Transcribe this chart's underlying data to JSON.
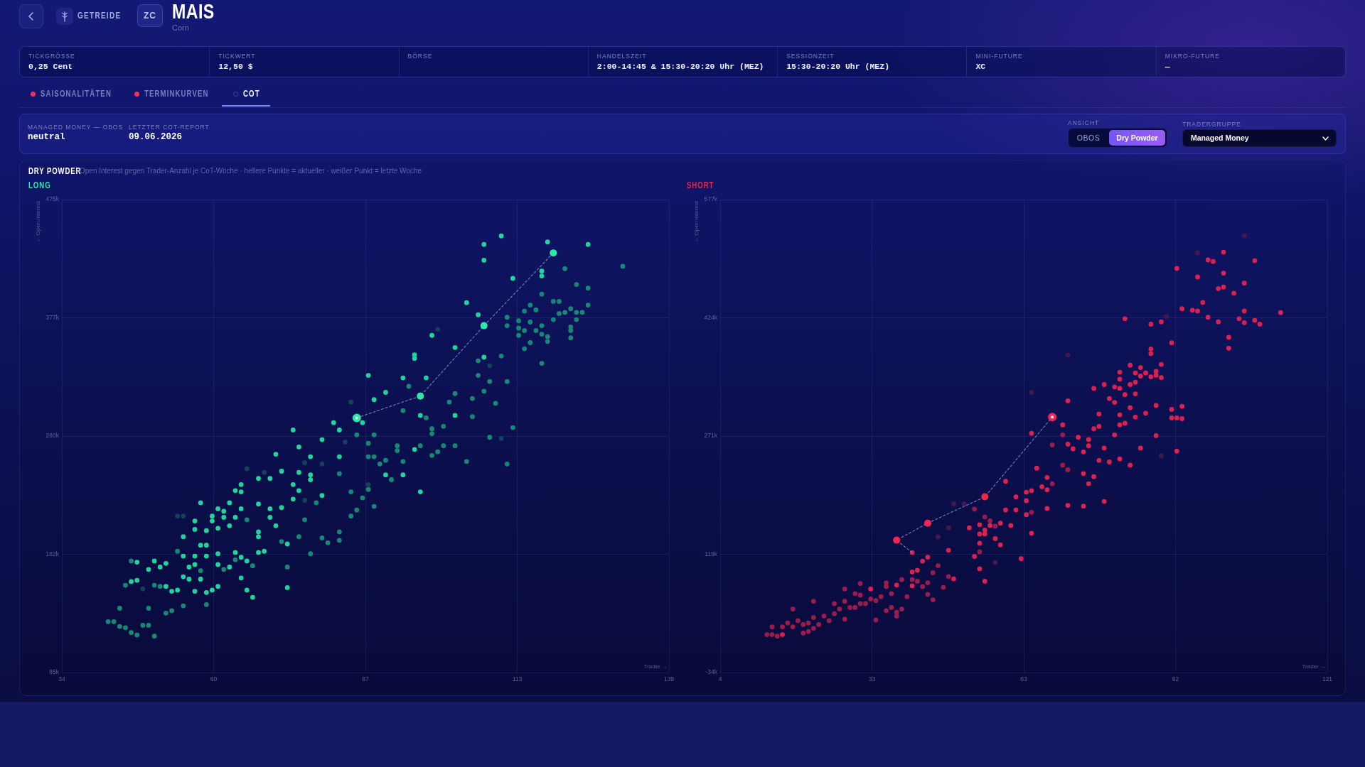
{
  "chart_data": [
    {
      "type": "other",
      "title": "MAIS",
      "subtitle": "Corn",
      "annotations": [
        "GETREIDE",
        "ZC"
      ]
    },
    {
      "type": "other",
      "annotations": [
        "TICKGRÖSSE",
        "0,25 Cent",
        "TICKWERT",
        "12,50 $",
        "BÖRSE",
        "HANDELSZEIT",
        "2:00-14:45 & 15:30-20:20 Uhr (MEZ)",
        "SESSIONZEIT",
        "15:30-20:20 Uhr (MEZ)",
        "MINI-FUTURE",
        "XC",
        "MIKRO-FUTURE",
        "—"
      ]
    },
    {
      "type": "other",
      "annotations": [
        "SAISONALITÄTEN",
        "TERMINKURVEN",
        "COT"
      ]
    },
    {
      "type": "other",
      "annotations": [
        "MANAGED MONEY — OBOS",
        "neutral",
        "LETZTER COT-REPORT",
        "09.06.2026",
        "ANSICHT",
        "OBOS",
        "Dry Powder",
        "TRADERGRUPPE",
        "Managed Money"
      ]
    },
    {
      "type": "other",
      "title": "DRY POWDER",
      "subtitle": "Open Interest gegen Trader-Anzahl je CoT-Woche · hellere Punkte = aktueller · weißer Punkt = letzte Woche"
    },
    {
      "type": "scatter",
      "title": "LONG",
      "xlabel": "Trader →",
      "ylabel": "← Open Interest",
      "xlim": [
        34,
        139
      ],
      "xticks": [
        34,
        {
          "value": 60.25,
          "label": "60"
        },
        {
          "value": 86.5,
          "label": "87"
        },
        {
          "value": 112.75,
          "label": "113"
        },
        139
      ],
      "ylim": [
        85000,
        475000
      ],
      "yticks": [
        {
          "value": 85000,
          "label": "85k"
        },
        {
          "value": 182500,
          "label": "182k"
        },
        {
          "value": 280000,
          "label": "280k"
        },
        {
          "value": 377500,
          "label": "377k"
        },
        {
          "value": 475000,
          "label": "475k"
        }
      ],
      "grid": true,
      "marker": "circle",
      "series": [
        {
          "color": "#14405a",
          "x": [
            54,
            55,
            66,
            69,
            76,
            79,
            83,
            84,
            76,
            48,
            87,
            99,
            108,
            110
          ],
          "values": [
            214000,
            214000,
            253000,
            250000,
            258000,
            257000,
            275000,
            308000,
            227000,
            154000,
            240000,
            368000,
            338000,
            278000
          ]
        },
        {
          "color": "#168874",
          "x": [
            42,
            43,
            44,
            45,
            46,
            47,
            48,
            49,
            50,
            44,
            49,
            52,
            53,
            55,
            59,
            45,
            46,
            50,
            51,
            54,
            58,
            62,
            64,
            67,
            73,
            66,
            79,
            82,
            82,
            84,
            84,
            72,
            75,
            76,
            77,
            78,
            80,
            82,
            105,
            88,
            87,
            87,
            88,
            89,
            90,
            91,
            92,
            92,
            93,
            94,
            93,
            96,
            97,
            98,
            98,
            98,
            99,
            100,
            100,
            102,
            101,
            102,
            104,
            105,
            106,
            106,
            107,
            108,
            109,
            111,
            110,
            112,
            108,
            111,
            111,
            111,
            113,
            113,
            113,
            114,
            114,
            114,
            115,
            115,
            115,
            116,
            116,
            117,
            117,
            117,
            118,
            118,
            119,
            119,
            120,
            120,
            121,
            121,
            122,
            122,
            122,
            122,
            123,
            123,
            123,
            124,
            125,
            125,
            131,
            117,
            85,
            86,
            87,
            88,
            85
          ],
          "values": [
            127000,
            127000,
            123000,
            122000,
            118000,
            116000,
            124000,
            124000,
            115000,
            138000,
            138000,
            134000,
            136000,
            140000,
            141000,
            157000,
            177000,
            157000,
            156000,
            185000,
            169000,
            170000,
            178000,
            173000,
            172000,
            211000,
            196000,
            249000,
            201000,
            234000,
            214000,
            193000,
            197000,
            211000,
            183000,
            225000,
            192000,
            194000,
            296000,
            281000,
            274000,
            263000,
            263000,
            257000,
            260000,
            244000,
            272000,
            268000,
            259000,
            321000,
            301000,
            272000,
            295000,
            286000,
            282000,
            264000,
            267000,
            288000,
            272000,
            272000,
            308000,
            315000,
            259000,
            311000,
            330000,
            342000,
            317000,
            325000,
            307000,
            325000,
            346000,
            287000,
            279000,
            257000,
            378000,
            371000,
            375000,
            369000,
            363000,
            383000,
            367000,
            352000,
            388000,
            374000,
            357000,
            384000,
            367000,
            397000,
            371000,
            364000,
            362000,
            358000,
            391000,
            376000,
            391000,
            381000,
            418000,
            382000,
            385000,
            370000,
            367000,
            361000,
            405000,
            382000,
            376000,
            382000,
            402000,
            388000,
            420000,
            340000,
            281000,
            229000,
            236000,
            222000,
            219000
          ]
        },
        {
          "color": "#20d49c",
          "x": [
            46,
            47,
            47,
            49,
            50,
            51,
            52,
            52,
            53,
            54,
            55,
            55,
            56,
            56,
            57,
            57,
            57,
            58,
            58,
            59,
            59,
            59,
            60,
            61,
            61,
            61,
            63,
            64,
            65,
            65,
            66,
            66,
            67,
            68,
            69,
            73,
            55,
            57,
            57,
            58,
            59,
            60,
            60,
            61,
            61,
            62,
            62,
            63,
            63,
            64,
            64,
            65,
            65,
            65,
            68,
            68,
            68,
            68,
            70,
            70,
            70,
            71,
            71,
            72,
            72,
            74,
            74,
            74,
            75,
            75,
            75,
            77,
            77,
            77,
            79,
            79,
            81,
            82,
            82,
            73,
            87,
            88,
            90,
            93,
            95,
            95,
            97,
            98,
            102,
            104,
            106,
            107,
            107,
            110,
            112,
            117,
            117,
            118,
            125,
            107,
            96,
            102,
            86,
            90,
            93,
            95,
            96
          ],
          "values": [
            160000,
            161000,
            176000,
            170000,
            177000,
            172000,
            175000,
            156000,
            152000,
            153000,
            181000,
            164000,
            172000,
            162000,
            181000,
            174000,
            152000,
            190000,
            162000,
            190000,
            181000,
            151000,
            153000,
            183000,
            174000,
            156000,
            172000,
            184000,
            180000,
            163000,
            177000,
            153000,
            147000,
            184000,
            185000,
            155000,
            197000,
            210000,
            203000,
            225000,
            202000,
            214000,
            210000,
            220000,
            204000,
            218000,
            213000,
            225000,
            206000,
            235000,
            213000,
            240000,
            234000,
            220000,
            245000,
            224000,
            201000,
            197000,
            245000,
            220000,
            213000,
            265000,
            206000,
            251000,
            221000,
            285000,
            240000,
            228000,
            271000,
            250000,
            235000,
            263000,
            248000,
            244000,
            277000,
            231000,
            291000,
            285000,
            263000,
            191000,
            330000,
            310000,
            316000,
            328000,
            347000,
            344000,
            328000,
            363000,
            353000,
            390000,
            380000,
            438000,
            425000,
            445000,
            410000,
            416000,
            412000,
            440000,
            438000,
            345000,
            297000,
            297000,
            291000,
            248000,
            248000,
            269000,
            234000
          ]
        },
        {
          "type": "line",
          "line_style": "dashed",
          "marker": "none",
          "color": "#7c80b4",
          "x": [
            119,
            107,
            96,
            85
          ],
          "values": [
            431000,
            371000,
            313000,
            295000
          ]
        },
        {
          "color": "#2aeaa8",
          "x": [
            119,
            107,
            96
          ],
          "values": [
            431000,
            371000,
            313000
          ]
        },
        {
          "color": "#ffffff",
          "x": [
            85
          ],
          "values": [
            295000
          ]
        }
      ]
    },
    {
      "type": "scatter",
      "title": "SHORT",
      "xlabel": "Trader →",
      "ylabel": "← Open Interest",
      "xlim": [
        4,
        121
      ],
      "xticks": [
        4,
        {
          "value": 33.25,
          "label": "33"
        },
        {
          "value": 62.5,
          "label": "63"
        },
        {
          "value": 91.75,
          "label": "92"
        },
        121
      ],
      "ylim": [
        -34000,
        577000
      ],
      "yticks": [
        {
          "value": -34000,
          "label": "-34k"
        },
        {
          "value": 118750,
          "label": "119k"
        },
        {
          "value": 271500,
          "label": "271k"
        },
        {
          "value": 424250,
          "label": "424k"
        },
        {
          "value": 577000,
          "label": "577k"
        }
      ],
      "grid": true,
      "marker": "circle",
      "series": [
        {
          "color": "#45174f",
          "x": [
            51,
            49,
            48,
            46,
            57,
            90,
            96,
            105,
            71,
            64,
            89
          ],
          "values": [
            184000,
            184000,
            153000,
            141000,
            108000,
            426000,
            508000,
            530000,
            376000,
            328000,
            246000
          ]
        },
        {
          "color": "#9a1c4c",
          "x": [
            13,
            14,
            14,
            15,
            16,
            17,
            18,
            19,
            18,
            20,
            20,
            21,
            21,
            22,
            22,
            22,
            23,
            24,
            25,
            26,
            26,
            27,
            28,
            28,
            28,
            29,
            30,
            30,
            31,
            31,
            31,
            32,
            33,
            34,
            34,
            35,
            36,
            36,
            36,
            37,
            37,
            38,
            38,
            39,
            39,
            40,
            41,
            42,
            43,
            44,
            44,
            45,
            45,
            46,
            47,
            48,
            54,
            55,
            56,
            57,
            53,
            68,
            68,
            70,
            70,
            71,
            64
          ],
          "values": [
            15000,
            15000,
            25000,
            13000,
            25000,
            30000,
            25000,
            33000,
            48000,
            28000,
            17000,
            30000,
            19000,
            37000,
            23000,
            58000,
            28000,
            39000,
            33000,
            42000,
            55000,
            48000,
            35000,
            58000,
            74000,
            50000,
            68000,
            50000,
            66000,
            55000,
            81000,
            55000,
            61000,
            59000,
            34000,
            64000,
            82000,
            77000,
            46000,
            68000,
            50000,
            44000,
            39000,
            86000,
            48000,
            64000,
            86000,
            84000,
            77000,
            82000,
            67000,
            95000,
            60000,
            104000,
            76000,
            90000,
            122000,
            167000,
            162000,
            155000,
            177000,
            260000,
            210000,
            273000,
            234000,
            228000,
            173000
          ]
        },
        {
          "color": "#dc2150",
          "x": [
            16,
            33,
            38,
            41,
            41,
            42,
            43,
            44,
            48,
            49,
            52,
            53,
            54,
            54,
            54,
            54,
            55,
            55,
            55,
            56,
            57,
            58,
            58,
            59,
            59,
            60,
            41,
            61,
            61,
            62,
            63,
            63,
            63,
            64,
            64,
            64,
            65,
            66,
            67,
            67,
            67,
            70,
            71,
            71,
            71,
            72,
            73,
            74,
            74,
            74,
            75,
            75,
            75,
            76,
            76,
            76,
            77,
            77,
            77,
            78,
            78,
            78,
            79,
            79,
            80,
            80,
            80,
            81,
            81,
            81,
            81,
            81,
            81,
            82,
            82,
            83,
            83,
            83,
            83,
            84,
            84,
            84,
            84,
            85,
            85,
            85,
            86,
            86,
            87,
            87,
            87,
            88,
            88,
            88,
            88,
            89,
            89,
            89,
            91,
            91,
            91,
            92,
            92,
            92,
            93,
            93,
            93,
            95,
            96,
            96,
            97,
            98,
            98,
            99,
            100,
            100,
            101,
            101,
            101,
            102,
            102,
            103,
            104,
            105,
            105,
            105,
            107,
            107,
            108,
            112,
            82,
            87
          ],
          "values": [
            15000,
            74000,
            79000,
            96000,
            78000,
            98000,
            110000,
            115000,
            124000,
            87000,
            153000,
            116000,
            157000,
            145000,
            133000,
            100000,
            150000,
            145000,
            84000,
            156000,
            139000,
            159000,
            131000,
            213000,
            176000,
            156000,
            121000,
            193000,
            176000,
            113000,
            199000,
            188000,
            170000,
            275000,
            201000,
            146000,
            230000,
            206000,
            218000,
            202000,
            178000,
            286000,
            317000,
            261000,
            182000,
            255000,
            270000,
            251000,
            223000,
            181000,
            267000,
            259000,
            210000,
            333000,
            281000,
            219000,
            300000,
            284000,
            240000,
            338000,
            256000,
            187000,
            320000,
            238000,
            335000,
            315000,
            273000,
            354000,
            345000,
            333000,
            299000,
            286000,
            242000,
            325000,
            288000,
            363000,
            338000,
            308000,
            234000,
            353000,
            341000,
            326000,
            296000,
            360000,
            349000,
            256000,
            353000,
            301000,
            384000,
            378000,
            348000,
            355000,
            350000,
            311000,
            272000,
            419000,
            364000,
            347000,
            392000,
            306000,
            295000,
            488000,
            295000,
            252000,
            436000,
            310000,
            294000,
            434000,
            477000,
            433000,
            444000,
            499000,
            425000,
            497000,
            462000,
            419000,
            509000,
            482000,
            464000,
            399000,
            385000,
            456000,
            423000,
            469000,
            433000,
            418000,
            498000,
            421000,
            416000,
            431000,
            423000,
            416000
          ]
        },
        {
          "type": "line",
          "line_style": "dashed",
          "marker": "none",
          "color": "#7c80b4",
          "x": [
            41,
            38,
            44,
            55,
            68
          ],
          "values": [
            121000,
            137000,
            159000,
            193000,
            296000
          ]
        },
        {
          "color": "#f0264f",
          "x": [
            38,
            44,
            55
          ],
          "values": [
            137000,
            159000,
            193000
          ]
        },
        {
          "color": "#ffffff",
          "x": [
            68
          ],
          "values": [
            296000
          ]
        }
      ]
    }
  ]
}
